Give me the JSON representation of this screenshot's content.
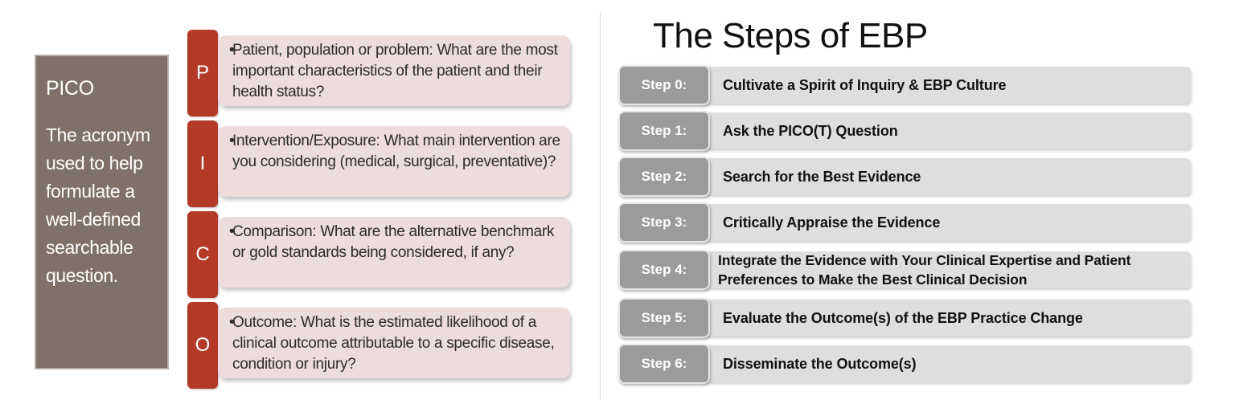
{
  "pico": {
    "title": "PICO",
    "description": "The acronym used to help formulate a well-defined searchable question.",
    "items": [
      {
        "letter": "P",
        "text": "Patient, population or problem: What are the most important characteristics of the patient and their health status?"
      },
      {
        "letter": "I",
        "text": "Intervention/Exposure: What main intervention are you considering (medical, surgical, preventative)?"
      },
      {
        "letter": "C",
        "text": "Comparison: What are the alternative benchmark or gold standards being considered, if any?"
      },
      {
        "letter": "O",
        "text": "Outcome: What is the estimated likelihood of a clinical outcome attributable to a specific disease, condition or injury?"
      }
    ],
    "bullet": "•"
  },
  "ebp": {
    "title": "The Steps of EBP",
    "steps": [
      {
        "label": "Step 0:",
        "text": "Cultivate a Spirit of Inquiry & EBP Culture"
      },
      {
        "label": "Step 1:",
        "text": "Ask the PICO(T) Question"
      },
      {
        "label": "Step 2:",
        "text": "Search for the Best Evidence"
      },
      {
        "label": "Step 3:",
        "text": "Critically Appraise the Evidence"
      },
      {
        "label": "Step 4:",
        "text": "Integrate the Evidence with Your Clinical Expertise and Patient Preferences to Make the Best Clinical Decision"
      },
      {
        "label": "Step 5:",
        "text": "Evaluate the Outcome(s) of the EBP Practice Change"
      },
      {
        "label": "Step 6:",
        "text": "Disseminate the Outcome(s)"
      }
    ]
  },
  "colors": {
    "pico_box": "#7f7169",
    "letter_tab": "#b23a26",
    "text_box": "#ecdcdb",
    "step_label": "#9b9b9b",
    "step_bar": "#dedede"
  }
}
